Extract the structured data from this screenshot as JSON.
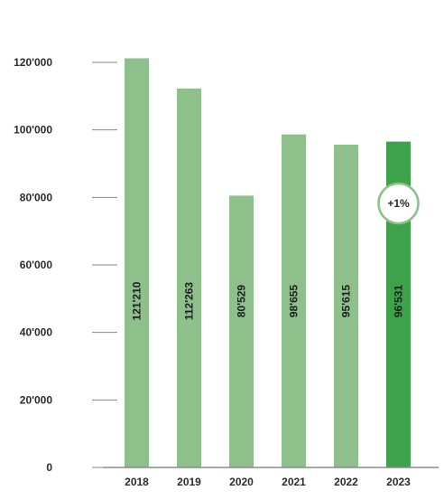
{
  "chart_data": {
    "type": "bar",
    "categories": [
      "2018",
      "2019",
      "2020",
      "2021",
      "2022",
      "2023"
    ],
    "values": [
      121210,
      112263,
      80529,
      98655,
      95615,
      96531
    ],
    "value_labels": [
      "121'210",
      "112'263",
      "80'529",
      "98'655",
      "95'615",
      "96'531"
    ],
    "y_ticks": [
      0,
      20000,
      40000,
      60000,
      80000,
      100000,
      120000
    ],
    "y_tick_labels": [
      "0",
      "20'000",
      "40'000",
      "60'000",
      "80'000",
      "100'000",
      "120'000"
    ],
    "ylim": [
      0,
      120000
    ],
    "grid": false,
    "highlight_category": "2023",
    "badge_text": "+1%",
    "colors": {
      "bar": "#8dc08b",
      "bar_highlight": "#3da24a",
      "badge_border": "#8dc08b",
      "tick_line": "#8a8a8a",
      "text": "#2b2b2b"
    }
  }
}
